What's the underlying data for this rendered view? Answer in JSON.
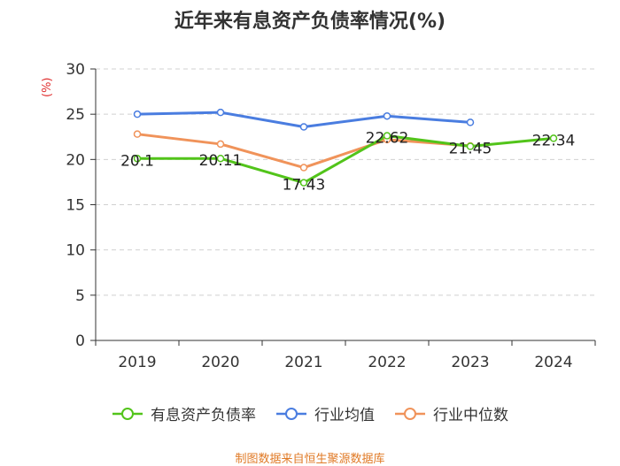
{
  "chart_data": {
    "type": "line",
    "title": "近年来有息资产负债率情况(%)",
    "unit_label": "(%)",
    "categories": [
      "2019",
      "2020",
      "2021",
      "2022",
      "2023",
      "2024"
    ],
    "ylim": [
      0,
      30
    ],
    "yticks": [
      0,
      5,
      10,
      15,
      20,
      25,
      30
    ],
    "grid": true,
    "legend_position": "bottom",
    "series": [
      {
        "name": "有息资产负债率",
        "color": "#52c41a",
        "values": [
          20.1,
          20.11,
          17.43,
          22.62,
          21.45,
          22.34
        ],
        "data_labels": [
          "20.1",
          "20.11",
          "17.43",
          "22.62",
          "21.45",
          "22.34"
        ]
      },
      {
        "name": "行业均值",
        "color": "#4a7de0",
        "values": [
          25.0,
          25.2,
          23.6,
          24.8,
          24.1,
          null
        ]
      },
      {
        "name": "行业中位数",
        "color": "#f0935a",
        "values": [
          22.8,
          21.7,
          19.1,
          22.2,
          21.5,
          null
        ]
      }
    ]
  },
  "footer": "制图数据来自恒生聚源数据库"
}
